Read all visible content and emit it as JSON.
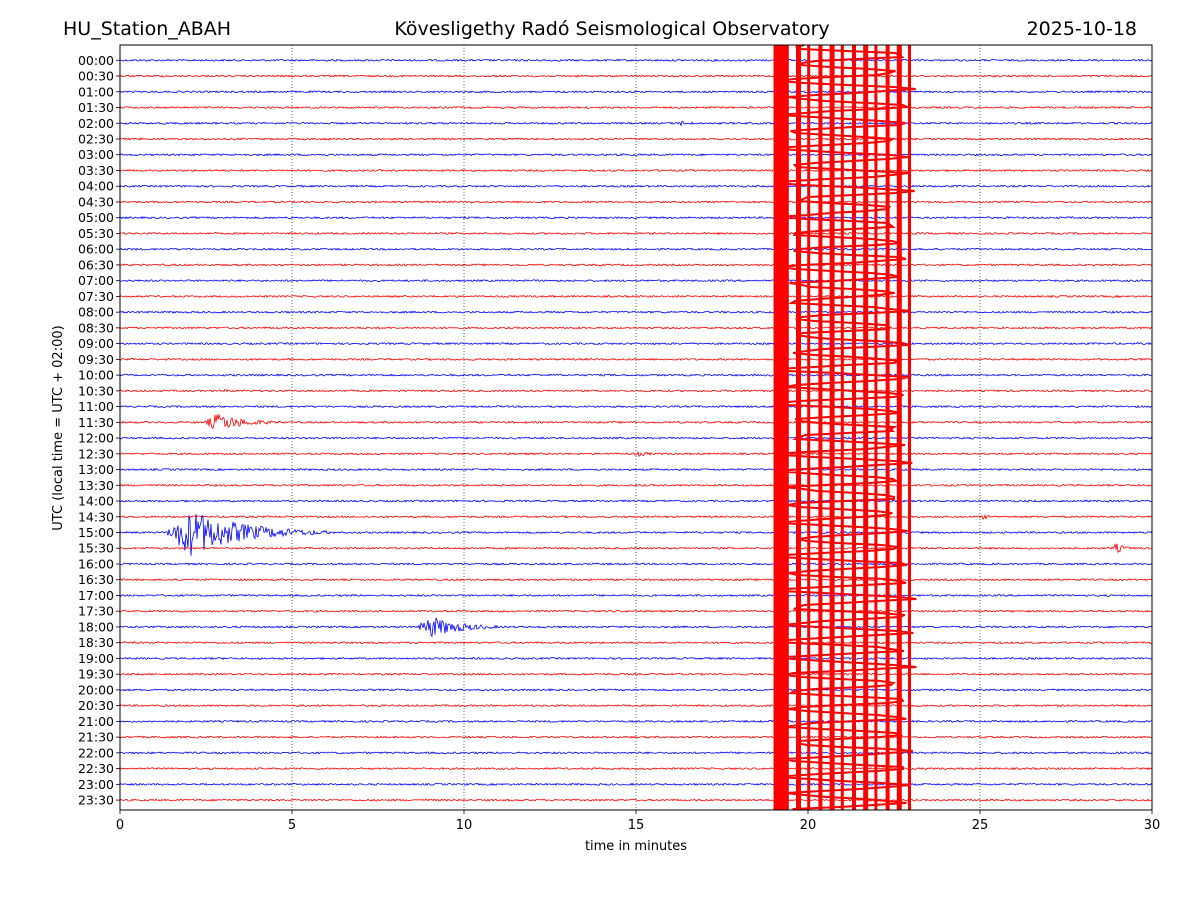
{
  "header": {
    "station": "HU_Station_ABAH",
    "observatory": "Kövesligethy Radó Seismological Observatory",
    "date": "2025-10-18"
  },
  "chart_data": {
    "type": "line",
    "title": "Kövesligethy Radó Seismological Observatory",
    "xlabel": "time in minutes",
    "ylabel": "UTC (local time = UTC + 02:00)",
    "xlim": [
      0,
      30
    ],
    "x_ticks": [
      0,
      5,
      10,
      15,
      20,
      25,
      30
    ],
    "grid_x": [
      5,
      10,
      15,
      20,
      25
    ],
    "grid": "vertical dotted",
    "row_labels": [
      "00:00",
      "00:30",
      "01:00",
      "01:30",
      "02:00",
      "02:30",
      "03:00",
      "03:30",
      "04:00",
      "04:30",
      "05:00",
      "05:30",
      "06:00",
      "06:30",
      "07:00",
      "07:30",
      "08:00",
      "08:30",
      "09:00",
      "09:30",
      "10:00",
      "10:30",
      "11:00",
      "11:30",
      "12:00",
      "12:30",
      "13:00",
      "13:30",
      "14:00",
      "14:30",
      "15:00",
      "15:30",
      "16:00",
      "16:30",
      "17:00",
      "17:30",
      "18:00",
      "18:30",
      "19:00",
      "19:30",
      "20:00",
      "20:30",
      "21:00",
      "21:30",
      "22:00",
      "22:30",
      "23:00",
      "23:30"
    ],
    "colors": {
      "full_hour": "#0000ff",
      "half_hour": "#ff0000"
    },
    "events": [
      {
        "row": 4,
        "start": 16.0,
        "end": 17.8,
        "amp": 2.5
      },
      {
        "row": 21,
        "start": 3.0,
        "end": 3.4,
        "amp": 3
      },
      {
        "row": 23,
        "start": 2.4,
        "end": 5.2,
        "amp": 9
      },
      {
        "row": 25,
        "start": 14.8,
        "end": 16.5,
        "amp": 2.5
      },
      {
        "row": 29,
        "start": 25.0,
        "end": 25.6,
        "amp": 3
      },
      {
        "row": 30,
        "start": 1.3,
        "end": 6.2,
        "amp": 24
      },
      {
        "row": 31,
        "start": 28.8,
        "end": 29.8,
        "amp": 5
      },
      {
        "row": 36,
        "start": 8.6,
        "end": 11.5,
        "amp": 11
      }
    ],
    "saturated_burst": {
      "start": 19.0,
      "end": 23.2,
      "color": "#ff0000"
    }
  }
}
